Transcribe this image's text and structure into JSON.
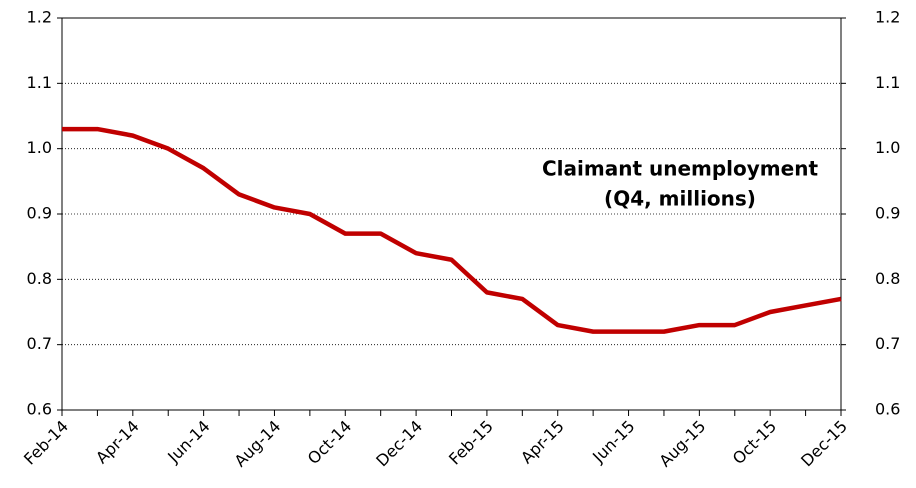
{
  "chart_data": {
    "type": "line",
    "annotation": [
      "Claimant unemployment",
      "(Q4, millions)"
    ],
    "categories": [
      "Feb-14",
      null,
      "Apr-14",
      null,
      "Jun-14",
      null,
      "Aug-14",
      null,
      "Oct-14",
      null,
      "Dec-14",
      null,
      "Feb-15",
      null,
      "Apr-15",
      null,
      "Jun-15",
      null,
      "Aug-15",
      null,
      "Oct-15",
      null,
      "Dec-15"
    ],
    "series": [
      {
        "color": "#c00000",
        "values": [
          1.03,
          1.03,
          1.02,
          1.0,
          0.97,
          0.93,
          0.91,
          0.9,
          0.87,
          0.87,
          0.84,
          0.83,
          0.78,
          0.77,
          0.73,
          0.72,
          0.72,
          0.72,
          0.73,
          0.73,
          0.75,
          0.76,
          0.77
        ]
      }
    ],
    "ylim": [
      0.6,
      1.2
    ],
    "yticks": [
      0.6,
      0.7,
      0.8,
      0.9,
      {
        "value": 1,
        "label": "1.0"
      },
      1.1,
      1.2
    ],
    "y2lim": [
      0.6,
      1.2
    ],
    "y2ticks": [
      0.6,
      0.7,
      0.8,
      0.9,
      {
        "value": 1,
        "label": "1.0"
      },
      1.1,
      1.2
    ],
    "grid": true
  }
}
